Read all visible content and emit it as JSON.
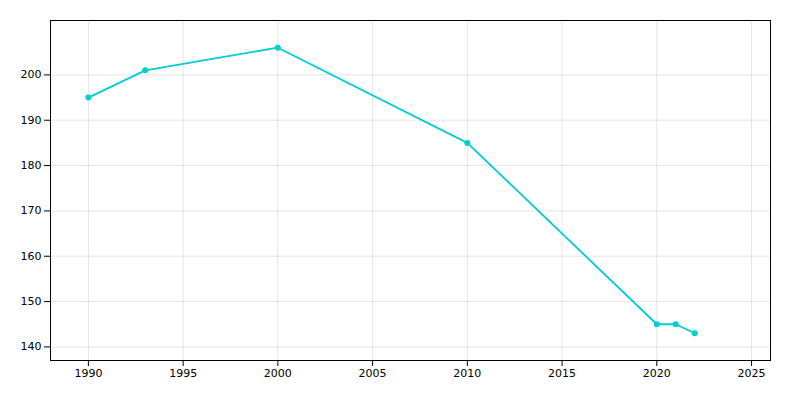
{
  "chart_data": {
    "type": "line",
    "x": [
      1990,
      1993,
      2000,
      2010,
      2020,
      2021,
      2022
    ],
    "values": [
      195,
      201,
      206,
      185,
      145,
      145,
      143
    ],
    "color": "#00CED1",
    "marker": "circle",
    "xlim": [
      1988,
      2026
    ],
    "ylim": [
      137,
      212
    ],
    "xticks": [
      1990,
      1995,
      2000,
      2005,
      2010,
      2015,
      2020,
      2025
    ],
    "yticks": [
      140,
      150,
      160,
      170,
      180,
      190,
      200
    ],
    "grid": true
  }
}
